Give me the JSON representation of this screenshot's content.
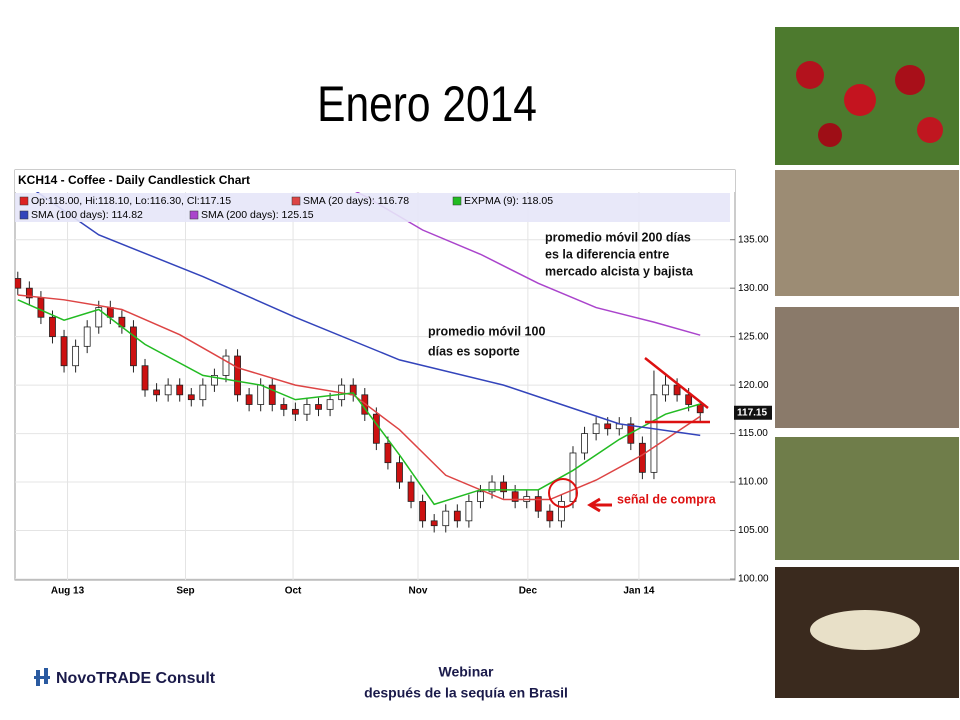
{
  "slide": {
    "title": "Enero 2014",
    "footer_logo": "NovoTRADE Consult",
    "footer_line1": "Webinar",
    "footer_line2": "después de la sequía en Brasil"
  },
  "chart_data": {
    "type": "candlestick",
    "title": "KCH14 - Coffee - Daily Candlestick Chart",
    "legend_ohlc": "Op:118.00, Hi:118.10, Lo:116.30, Cl:117.15",
    "legend_ohlc_color": "#dd2222",
    "up_color": "#ffffff",
    "down_color": "#cc1111",
    "open": [
      131,
      130,
      129,
      127,
      125,
      122,
      124,
      126,
      128,
      127,
      126,
      122,
      119.5,
      119,
      120,
      119,
      118.5,
      120,
      121,
      123,
      119,
      118,
      120,
      118,
      117.5,
      117,
      118,
      117.5,
      118.5,
      120,
      119,
      117,
      114,
      112,
      110,
      108,
      106,
      105.5,
      107,
      106,
      108,
      109,
      110,
      109,
      108,
      108.5,
      107,
      106,
      108,
      113,
      115,
      116,
      115.5,
      116,
      114,
      111,
      119,
      120,
      119,
      118
    ],
    "high": [
      131.7,
      130.7,
      129.7,
      127.7,
      125.7,
      124.7,
      126.7,
      128.7,
      128.7,
      127.7,
      126.7,
      122.7,
      120.2,
      120.7,
      120.7,
      119.7,
      120.7,
      121.7,
      123.7,
      123.7,
      119.7,
      120.7,
      120.7,
      118.7,
      118.2,
      118.7,
      118.7,
      119.2,
      120.7,
      120.7,
      119.7,
      117.7,
      114.7,
      112.7,
      110.7,
      108.7,
      106.7,
      107.7,
      107.7,
      108.7,
      109.7,
      110.7,
      110.7,
      109.7,
      109.2,
      109.2,
      107.7,
      108.7,
      113.7,
      115.7,
      116.7,
      116.7,
      116.7,
      116.7,
      114.7,
      121.5,
      121,
      120.7,
      119.7,
      118.1
    ],
    "low": [
      129.3,
      128.3,
      126.3,
      124.3,
      121.3,
      121.3,
      123.3,
      125.3,
      126.3,
      125.3,
      121.3,
      118.8,
      118.3,
      118.3,
      118.3,
      117.8,
      117.8,
      119.3,
      120.3,
      118.3,
      117.3,
      117.3,
      117.3,
      116.8,
      116.3,
      116.3,
      116.8,
      116.8,
      117.8,
      118.3,
      116.3,
      113.3,
      111.3,
      109.3,
      107.3,
      105.3,
      104.8,
      104.8,
      105.3,
      105.3,
      107.3,
      108.3,
      108.3,
      107.3,
      107.3,
      106.3,
      105.3,
      105.3,
      107.3,
      112.3,
      114.3,
      114.8,
      114.8,
      113.3,
      110.3,
      110.3,
      118.3,
      118.3,
      117.3,
      116.3
    ],
    "close": [
      130,
      129,
      127,
      125,
      122,
      124,
      126,
      128,
      127,
      126,
      122,
      119.5,
      119,
      120,
      119,
      118.5,
      120,
      121,
      123,
      119,
      118,
      120,
      118,
      117.5,
      117,
      118,
      117.5,
      118.5,
      120,
      119,
      117,
      114,
      112,
      110,
      108,
      106,
      105.5,
      107,
      106,
      108,
      109,
      110,
      109,
      108,
      108.5,
      107,
      106,
      108,
      113,
      115,
      116,
      115.5,
      116,
      114,
      111,
      119,
      120,
      119,
      118,
      117.15
    ],
    "last_label": "117.15",
    "series": [
      {
        "name": "SMA (20 days): 116.78",
        "color": "#dd4444",
        "x": [
          0,
          4,
          9,
          14,
          19,
          24,
          29,
          33,
          37,
          42,
          46,
          50,
          54,
          59
        ],
        "values": [
          129.3,
          128.8,
          127.8,
          125.2,
          121.8,
          120,
          119,
          115.4,
          110.7,
          108.2,
          108.2,
          110.2,
          112.8,
          116.78
        ]
      },
      {
        "name": "EXPMA (9): 118.05",
        "color": "#22bb22",
        "x": [
          0,
          4,
          7,
          11,
          16,
          21,
          24,
          29,
          33,
          36,
          40,
          45,
          48,
          52,
          56,
          59
        ],
        "values": [
          128.8,
          126.7,
          127.8,
          124.2,
          121,
          120,
          118.5,
          119.2,
          112.8,
          107.7,
          109.2,
          109.2,
          111.2,
          114.4,
          117,
          118.05
        ]
      },
      {
        "name": "SMA (100 days): 114.82",
        "color": "#3344bb",
        "x": [
          0,
          7,
          16,
          24,
          33,
          42,
          47,
          52,
          59
        ],
        "values": [
          141.3,
          135.5,
          131.2,
          127,
          122.6,
          120,
          118,
          116,
          114.82
        ]
      },
      {
        "name": "SMA (200 days): 125.15",
        "color": "#aa44cc",
        "x": [
          25,
          30,
          35,
          40,
          45,
          50,
          55,
          59
        ],
        "values": [
          142.5,
          139.5,
          136,
          133.5,
          130.5,
          128,
          126.5,
          125.15
        ]
      }
    ],
    "annotations": [
      [
        "promedio móvil 200 días",
        "es la diferencia entre",
        "mercado alcista y bajista"
      ],
      [
        "promedio móvil 100",
        "días es soporte"
      ],
      [
        "señal de compra"
      ]
    ],
    "xlim": [
      -0.5,
      59.5
    ],
    "xticks": [
      {
        "value": 4.3,
        "label": "Aug 13"
      },
      {
        "value": 14.5,
        "label": "Sep"
      },
      {
        "value": 23.8,
        "label": "Oct"
      },
      {
        "value": 34.6,
        "label": "Nov"
      },
      {
        "value": 44.1,
        "label": "Dec"
      },
      {
        "value": 53.7,
        "label": "Jan 14"
      }
    ],
    "ylim": [
      100,
      142.5
    ],
    "yticks": [
      {
        "value": 100,
        "label": "100.00"
      },
      {
        "value": 105,
        "label": "105.00"
      },
      {
        "value": 110,
        "label": "110.00"
      },
      {
        "value": 115,
        "label": "115.00"
      },
      {
        "value": 120,
        "label": "120.00"
      },
      {
        "value": 125,
        "label": "125.00"
      },
      {
        "value": 130,
        "label": "130.00"
      },
      {
        "value": 135,
        "label": "135.00"
      }
    ]
  }
}
